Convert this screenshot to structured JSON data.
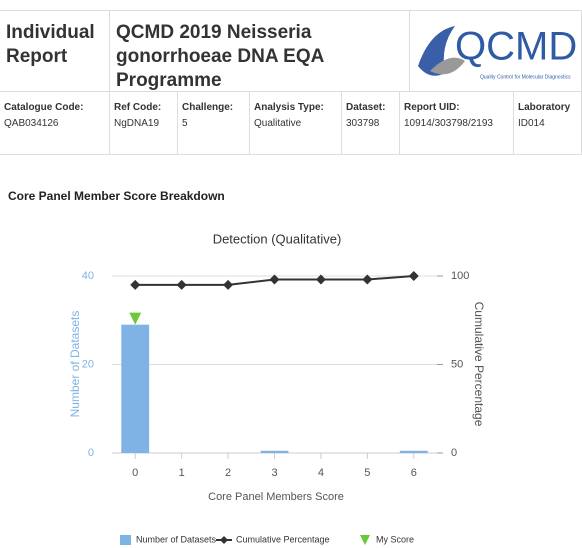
{
  "header": {
    "label": "Individual Report",
    "title": "QCMD 2019 Neisseria gonorrhoeae DNA EQA Programme",
    "logo": "QCMD",
    "logo_tagline": "Quality Control for Molecular Diagnostics"
  },
  "table": {
    "rows": [
      [
        "Catalogue Code:",
        "Ref Code:",
        "Challenge:",
        "Analysis Type:",
        "Dataset:",
        "Report UID:",
        "Laboratory"
      ],
      [
        "QAB034126",
        "NgDNA19",
        "5",
        "Qualitative",
        "303798",
        "10914/303798/2193",
        "ID014"
      ]
    ]
  },
  "section_title": "Core Panel Member Score Breakdown",
  "chart_data": {
    "type": "bar",
    "title": "Detection (Qualitative)",
    "x_label": "Core Panel Members Score",
    "y_label": "Number of Datasets",
    "y2_label": "Cumulative Percentage",
    "categories": [
      "0",
      "1",
      "2",
      "3",
      "4",
      "5",
      "6"
    ],
    "series": [
      {
        "name": "Number of Datasets",
        "color": "#7fb3e6",
        "values": [
          29,
          0,
          0,
          0.5,
          0,
          0,
          0.5
        ]
      },
      {
        "name": "Cumulative Percentage",
        "color": "#333333",
        "axis": "y2",
        "values": [
          95,
          95,
          95,
          98,
          98,
          98,
          100
        ]
      },
      {
        "name": "My Score",
        "color": "#6cc73a",
        "values": [
          29,
          null,
          null,
          null,
          null,
          null,
          null
        ]
      }
    ],
    "ylim": [
      0,
      40
    ],
    "yticks": [
      0,
      20,
      40
    ],
    "y2lim": [
      0,
      100
    ],
    "y2ticks": [
      0,
      50,
      100
    ],
    "grid": true
  }
}
